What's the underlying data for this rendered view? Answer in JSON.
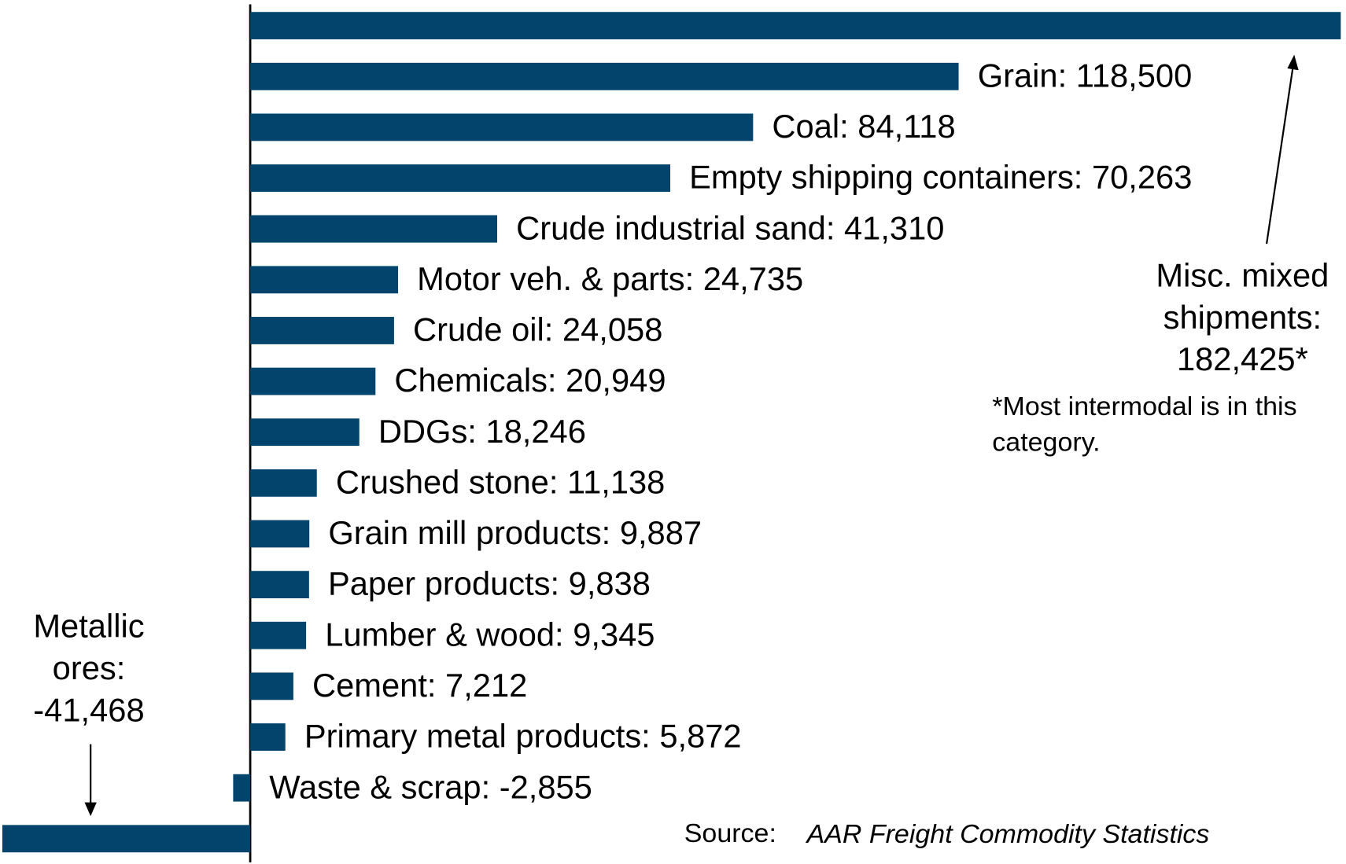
{
  "chart_data": {
    "type": "hbar",
    "color": "#02446b",
    "values": [
      182425,
      118500,
      84118,
      70263,
      41310,
      24735,
      24058,
      20949,
      18246,
      11138,
      9887,
      9838,
      9345,
      7212,
      5872,
      -2855,
      -41468
    ],
    "value_labels": [
      [
        "Misc. mixed",
        "shipments:",
        "182,425*"
      ],
      "Grain: 118,500",
      "Coal: 84,118",
      "Empty shipping containers: 70,263",
      "Crude industrial sand: 41,310",
      "Motor veh. & parts: 24,735",
      "Crude oil: 24,058",
      "Chemicals: 20,949",
      "DDGs: 18,246",
      "Crushed stone: 11,138",
      "Grain mill products: 9,887",
      "Paper products: 9,838",
      "Lumber & wood: 9,345",
      "Cement: 7,212",
      "Primary metal products: 5,872",
      "Waste & scrap:  -2,855",
      [
        "Metallic",
        "ores:",
        "-41,468"
      ]
    ],
    "xlim": [
      -41860,
      183300
    ],
    "footnote": [
      "*Most intermodal  is in this",
      "category."
    ],
    "source": {
      "label": "Source:",
      "text": "AAR Freight Commodity Statistics"
    }
  }
}
